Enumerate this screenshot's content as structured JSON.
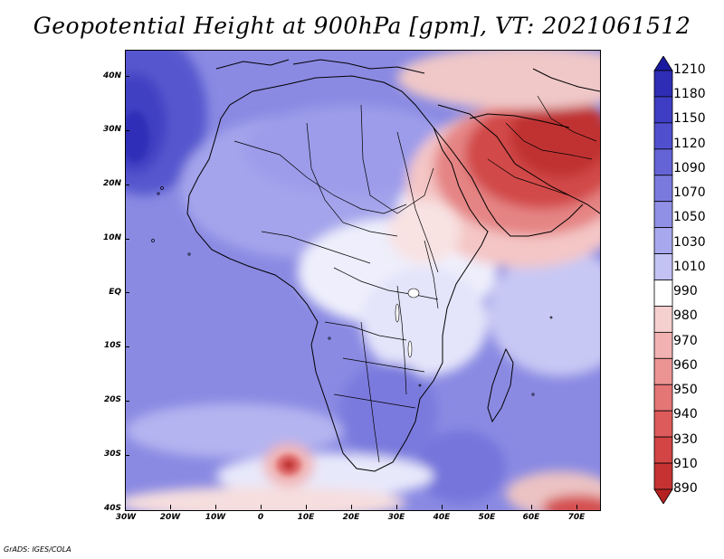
{
  "title": "Geopotential Height at 900hPa [gpm], VT: 2021061512",
  "credit": "GrADS: IGES/COLA",
  "map": {
    "projection": "latlon",
    "lon_range": [
      -30,
      75
    ],
    "lat_range": [
      -40,
      45
    ],
    "lat_labels": [
      "40N",
      "30N",
      "20N",
      "10N",
      "EQ",
      "10S",
      "20S",
      "30S",
      "40S"
    ],
    "lon_labels": [
      "30W",
      "20W",
      "10W",
      "0",
      "10E",
      "20E",
      "30E",
      "40E",
      "50E",
      "60E",
      "70E"
    ],
    "field": "geopotential height 900hPa",
    "high_region": "northern Atlantic near 30W,30N (dark blue)",
    "low_regions": [
      "Arabian Peninsula / Iran / Pakistan (dark red)",
      "southern Atlantic near 6E,32S (red core)",
      "far south near 70E,40S (red)"
    ]
  },
  "legend": {
    "levels": [
      "1210",
      "1180",
      "1150",
      "1120",
      "1090",
      "1070",
      "1050",
      "1030",
      "1010",
      "990",
      "980",
      "970",
      "960",
      "950",
      "940",
      "930",
      "910",
      "890"
    ],
    "colors": [
      "#1a1aa0",
      "#2d2db5",
      "#3e3ec4",
      "#5050cf",
      "#6464d6",
      "#7a7ade",
      "#9090e6",
      "#a8a8ee",
      "#c2c2f3",
      "#ffffff",
      "#f6cfcf",
      "#f2b2b2",
      "#ec9494",
      "#e57676",
      "#de5b5b",
      "#d34444",
      "#c63232",
      "#b52121"
    ]
  }
}
